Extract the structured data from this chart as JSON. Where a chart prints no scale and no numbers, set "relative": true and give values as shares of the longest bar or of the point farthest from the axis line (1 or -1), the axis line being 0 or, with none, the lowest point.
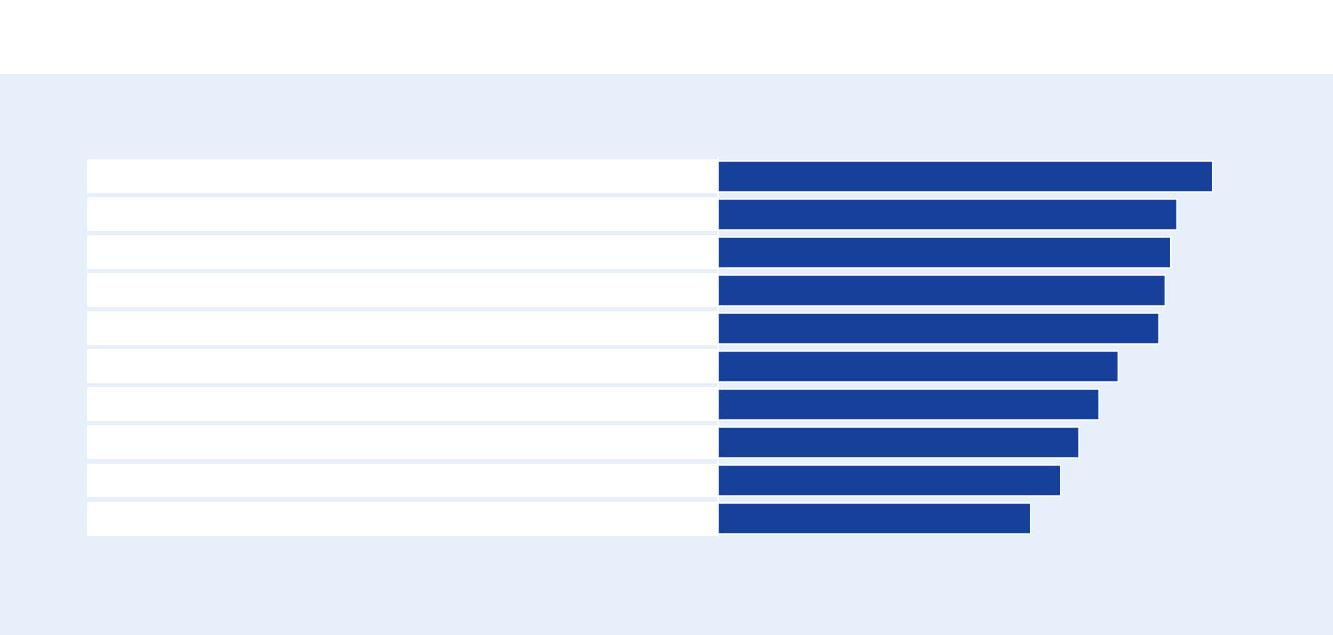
{
  "chart_data": {
    "type": "bar",
    "orientation": "horizontal",
    "relative": true,
    "categories": [
      null,
      null,
      null,
      null,
      null,
      null,
      null,
      null,
      null,
      null
    ],
    "values": [
      1,
      0.928,
      0.916,
      0.904,
      0.892,
      0.809,
      0.771,
      0.73,
      0.692,
      0.632
    ],
    "color": "#17409a"
  }
}
